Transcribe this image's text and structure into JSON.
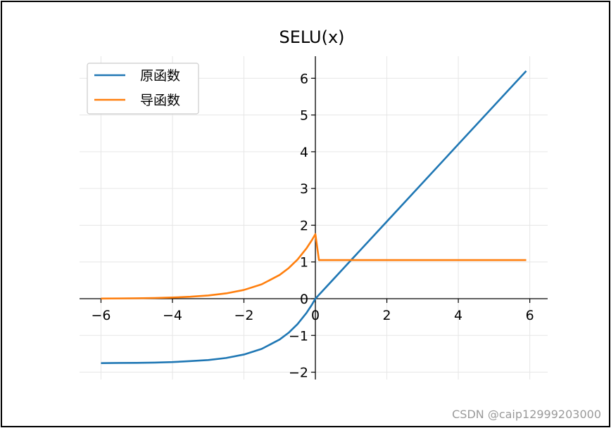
{
  "watermark": "CSDN @caip12999203000",
  "chart_data": {
    "type": "line",
    "title": "SELU(x)",
    "xlabel": "",
    "ylabel": "",
    "xlim": [
      -6.6,
      6.5
    ],
    "ylim": [
      -2.2,
      6.6
    ],
    "xticks": [
      -6,
      -4,
      -2,
      0,
      2,
      4,
      6
    ],
    "yticks": [
      -2,
      -1,
      0,
      1,
      2,
      3,
      4,
      5,
      6
    ],
    "xtick_labels": [
      "−6",
      "−4",
      "−2",
      "0",
      "2",
      "4",
      "6"
    ],
    "ytick_labels": [
      "−2",
      "−1",
      "0",
      "1",
      "2",
      "3",
      "4",
      "5",
      "6"
    ],
    "grid": true,
    "spines": "centered",
    "legend_position": "top-left",
    "x": [
      -6.0,
      -5.5,
      -5.0,
      -4.5,
      -4.0,
      -3.5,
      -3.0,
      -2.5,
      -2.0,
      -1.5,
      -1.0,
      -0.75,
      -0.5,
      -0.25,
      -0.1,
      0.0,
      0.1,
      0.5,
      1.0,
      2.0,
      3.0,
      4.0,
      5.0,
      5.9
    ],
    "series": [
      {
        "name": "原函数",
        "color": "#1f77b4",
        "values": [
          -1.754,
          -1.749,
          -1.746,
          -1.739,
          -1.726,
          -1.7,
          -1.671,
          -1.614,
          -1.52,
          -1.366,
          -1.111,
          -0.928,
          -0.692,
          -0.388,
          -0.167,
          0.0,
          0.105,
          0.525,
          1.051,
          2.101,
          3.152,
          4.203,
          5.254,
          6.199
        ]
      },
      {
        "name": "导函数",
        "color": "#ff7f0e",
        "values": [
          0.004,
          0.007,
          0.012,
          0.019,
          0.032,
          0.053,
          0.088,
          0.144,
          0.238,
          0.392,
          0.647,
          0.83,
          1.066,
          1.369,
          1.59,
          1.758,
          1.051,
          1.051,
          1.051,
          1.051,
          1.051,
          1.051,
          1.051,
          1.051
        ]
      }
    ]
  }
}
